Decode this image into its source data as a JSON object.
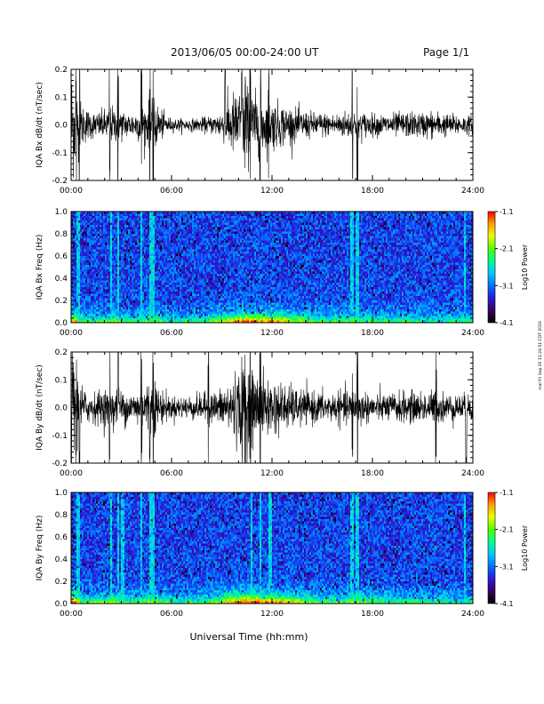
{
  "header": {
    "title": "2013/06/05  00:00-24:00 UT",
    "page": "Page 1/1"
  },
  "footer": {
    "xlabel": "Universal Time (hh:mm)"
  },
  "timestamp_text": "mal Fri Sep 20 11:24:51 CDT 2019",
  "colors": {
    "colorbar": [
      "#000000",
      "#3a0060",
      "#2a18d8",
      "#0070ff",
      "#00c8ff",
      "#00ff90",
      "#50ff00",
      "#e8ff00",
      "#ffa000",
      "#ff0000"
    ]
  },
  "chart_data": [
    {
      "type": "line",
      "ylabel": "IQA Bx dB/dt (nT/sec)",
      "xlim": [
        0,
        24
      ],
      "ylim": [
        -0.2,
        0.2
      ],
      "xticks": [
        "00:00",
        "06:00",
        "12:00",
        "18:00",
        "24:00"
      ],
      "yticks": [
        "0.2",
        "0.1",
        "0.0",
        "-0.1",
        "-0.2"
      ],
      "activity_profile": {
        "hours": [
          0,
          0.5,
          1,
          1.5,
          2,
          2.5,
          3,
          3.5,
          4,
          4.5,
          5,
          5.5,
          6,
          6.5,
          7,
          7.5,
          8,
          8.5,
          9,
          9.5,
          10,
          10.5,
          11,
          11.5,
          12,
          12.5,
          13,
          13.5,
          14,
          14.5,
          15,
          15.5,
          16,
          16.5,
          17,
          17.5,
          18,
          18.5,
          19,
          19.5,
          20,
          20.5,
          21,
          21.5,
          22,
          22.5,
          23,
          23.5,
          24
        ],
        "amplitude": [
          0.2,
          0.08,
          0.05,
          0.04,
          0.05,
          0.06,
          0.05,
          0.04,
          0.05,
          0.07,
          0.08,
          0.04,
          0.02,
          0.02,
          0.02,
          0.02,
          0.025,
          0.03,
          0.05,
          0.09,
          0.12,
          0.12,
          0.1,
          0.09,
          0.08,
          0.07,
          0.06,
          0.05,
          0.045,
          0.04,
          0.04,
          0.035,
          0.04,
          0.045,
          0.05,
          0.04,
          0.035,
          0.035,
          0.035,
          0.04,
          0.04,
          0.04,
          0.04,
          0.045,
          0.04,
          0.035,
          0.035,
          0.03,
          0.03
        ]
      },
      "spikes_hours": [
        0.3,
        0.5,
        2.3,
        2.8,
        4.2,
        4.7,
        4.9,
        9.2,
        10.2,
        10.4,
        10.7,
        11.3,
        11.8,
        16.8,
        17.1
      ]
    },
    {
      "type": "heatmap",
      "ylabel": "IQA Bx Freq (Hz)",
      "xlim": [
        0,
        24
      ],
      "ylim": [
        0.0,
        1.0
      ],
      "xticks": [
        "00:00",
        "06:00",
        "12:00",
        "18:00",
        "24:00"
      ],
      "yticks": [
        "1.0",
        "0.8",
        "0.6",
        "0.4",
        "0.2",
        "0.0"
      ],
      "colorbar": {
        "label": "Log10 Power",
        "ticks": [
          "-1.1",
          "-2.1",
          "-3.1",
          "-4.1"
        ],
        "range": [
          -4.1,
          -1.1
        ]
      },
      "broadband_hours": [
        0.4,
        2.4,
        2.8,
        4.2,
        4.7,
        4.9,
        16.8,
        17.1,
        23.5
      ],
      "low_freq_power_profile": [
        0.9,
        0.5,
        0.4,
        0.4,
        0.45,
        0.5,
        0.4,
        0.35,
        0.4,
        0.45,
        0.5,
        0.4,
        0.3,
        0.3,
        0.35,
        0.35,
        0.4,
        0.45,
        0.55,
        0.65,
        0.75,
        0.8,
        0.78,
        0.75,
        0.72,
        0.68,
        0.62,
        0.55,
        0.5,
        0.45,
        0.42,
        0.4,
        0.4,
        0.42,
        0.45,
        0.42,
        0.4,
        0.38,
        0.36,
        0.36,
        0.36,
        0.35,
        0.35,
        0.35,
        0.34,
        0.34,
        0.33,
        0.33,
        0.32
      ]
    },
    {
      "type": "line",
      "ylabel": "IQA By dB/dt (nT/sec)",
      "xlim": [
        0,
        24
      ],
      "ylim": [
        -0.2,
        0.2
      ],
      "xticks": [
        "00:00",
        "06:00",
        "12:00",
        "18:00",
        "24:00"
      ],
      "yticks": [
        "0.2",
        "0.1",
        "0.0",
        "-0.1",
        "-0.2"
      ],
      "activity_profile": {
        "hours": [
          0,
          0.5,
          1,
          1.5,
          2,
          2.5,
          3,
          3.5,
          4,
          4.5,
          5,
          5.5,
          6,
          6.5,
          7,
          7.5,
          8,
          8.5,
          9,
          9.5,
          10,
          10.5,
          11,
          11.5,
          12,
          12.5,
          13,
          13.5,
          14,
          14.5,
          15,
          15.5,
          16,
          16.5,
          17,
          17.5,
          18,
          18.5,
          19,
          19.5,
          20,
          20.5,
          21,
          21.5,
          22,
          22.5,
          23,
          23.5,
          24
        ],
        "amplitude": [
          0.2,
          0.08,
          0.05,
          0.05,
          0.06,
          0.07,
          0.06,
          0.05,
          0.06,
          0.08,
          0.09,
          0.05,
          0.035,
          0.035,
          0.04,
          0.04,
          0.045,
          0.05,
          0.06,
          0.09,
          0.13,
          0.13,
          0.11,
          0.1,
          0.09,
          0.08,
          0.07,
          0.06,
          0.055,
          0.05,
          0.05,
          0.045,
          0.05,
          0.055,
          0.06,
          0.05,
          0.045,
          0.045,
          0.045,
          0.05,
          0.05,
          0.05,
          0.05,
          0.055,
          0.05,
          0.045,
          0.045,
          0.04,
          0.04
        ]
      },
      "spikes_hours": [
        0.3,
        0.5,
        2.3,
        2.8,
        4.2,
        4.7,
        4.9,
        8.2,
        10.2,
        10.4,
        10.7,
        11.3,
        16.8,
        17.1,
        21.8,
        23.6
      ]
    },
    {
      "type": "heatmap",
      "ylabel": "IQA By Freq (Hz)",
      "xlim": [
        0,
        24
      ],
      "ylim": [
        0.0,
        1.0
      ],
      "xticks": [
        "00:00",
        "06:00",
        "12:00",
        "18:00",
        "24:00"
      ],
      "yticks": [
        "1.0",
        "0.8",
        "0.6",
        "0.4",
        "0.2",
        "0.0"
      ],
      "colorbar": {
        "label": "Log10 Power",
        "ticks": [
          "-1.1",
          "-2.1",
          "-3.1",
          "-4.1"
        ],
        "range": [
          -4.1,
          -1.1
        ]
      },
      "broadband_hours": [
        0.4,
        2.4,
        2.8,
        3.1,
        4.2,
        4.7,
        4.9,
        10.8,
        11.3,
        11.9,
        16.8,
        17.1,
        23.5
      ],
      "low_freq_power_profile": [
        0.95,
        0.55,
        0.45,
        0.45,
        0.5,
        0.55,
        0.45,
        0.4,
        0.45,
        0.5,
        0.55,
        0.45,
        0.35,
        0.35,
        0.4,
        0.4,
        0.45,
        0.5,
        0.6,
        0.7,
        0.8,
        0.85,
        0.82,
        0.8,
        0.76,
        0.7,
        0.64,
        0.58,
        0.52,
        0.48,
        0.45,
        0.42,
        0.42,
        0.45,
        0.48,
        0.45,
        0.42,
        0.4,
        0.38,
        0.38,
        0.38,
        0.37,
        0.37,
        0.36,
        0.36,
        0.36,
        0.35,
        0.35,
        0.34
      ]
    }
  ]
}
